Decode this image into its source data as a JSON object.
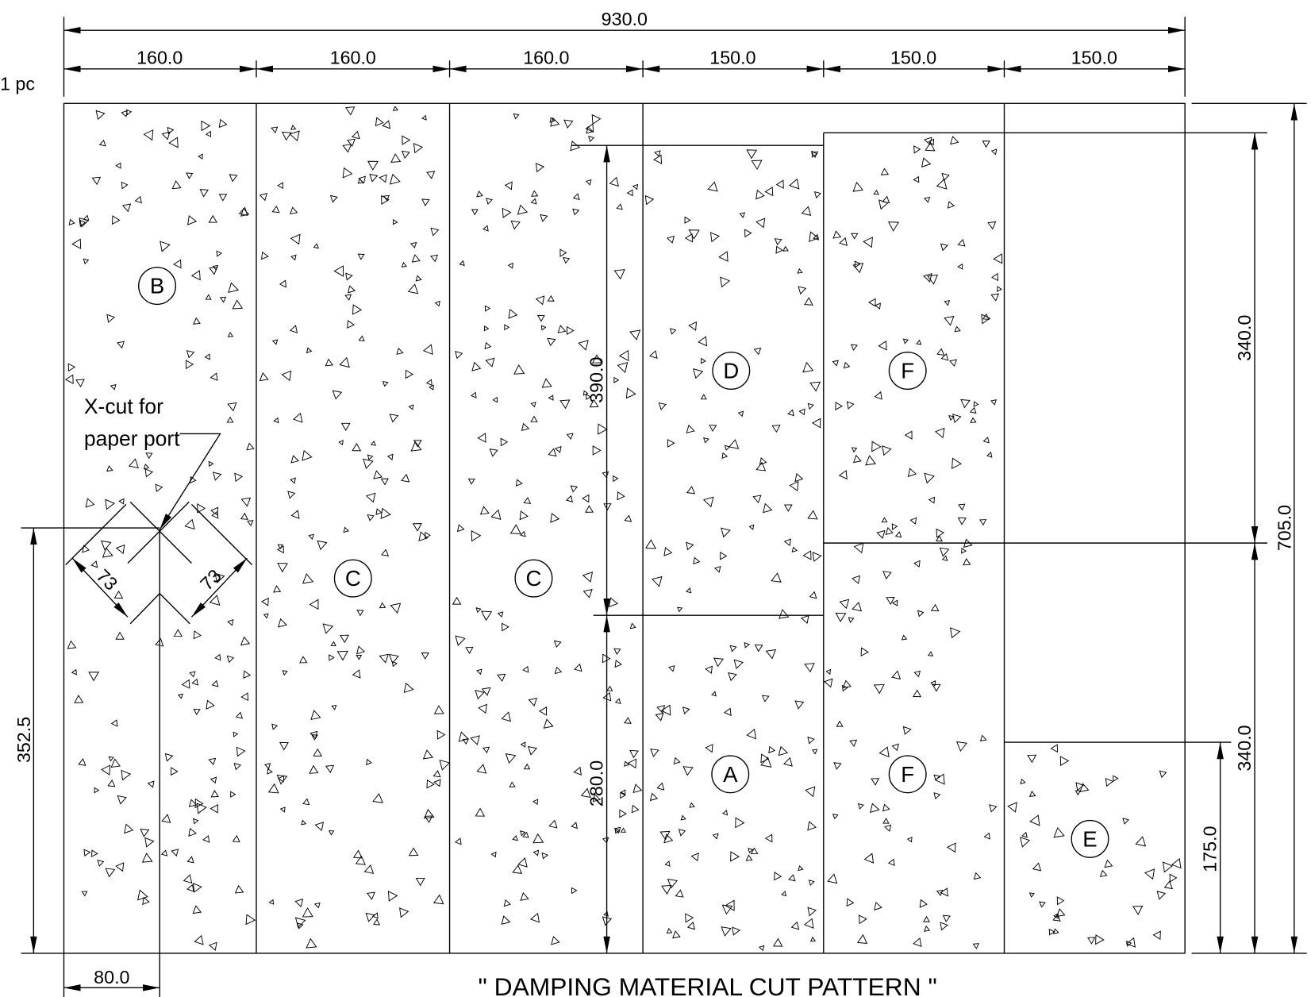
{
  "header": {
    "quantity_note": "1 pc",
    "title": "\" DAMPING MATERIAL CUT PATTERN \""
  },
  "dimensions": {
    "overall_width": "930.0",
    "widths": [
      "160.0",
      "160.0",
      "160.0",
      "150.0",
      "150.0",
      "150.0"
    ],
    "right_total": "705.0",
    "right_upper": "340.0",
    "right_lower": "340.0",
    "right_small": "175.0",
    "inner_upper": "390.0",
    "inner_lower": "280.0",
    "left_height": "352.5",
    "left_width": "80.0",
    "xcut_a": "73",
    "xcut_b": "73"
  },
  "annotation": {
    "line1": "X-cut for",
    "line2": "paper port"
  },
  "pieces": [
    "B",
    "C",
    "C",
    "D",
    "A",
    "F",
    "F",
    "E"
  ]
}
